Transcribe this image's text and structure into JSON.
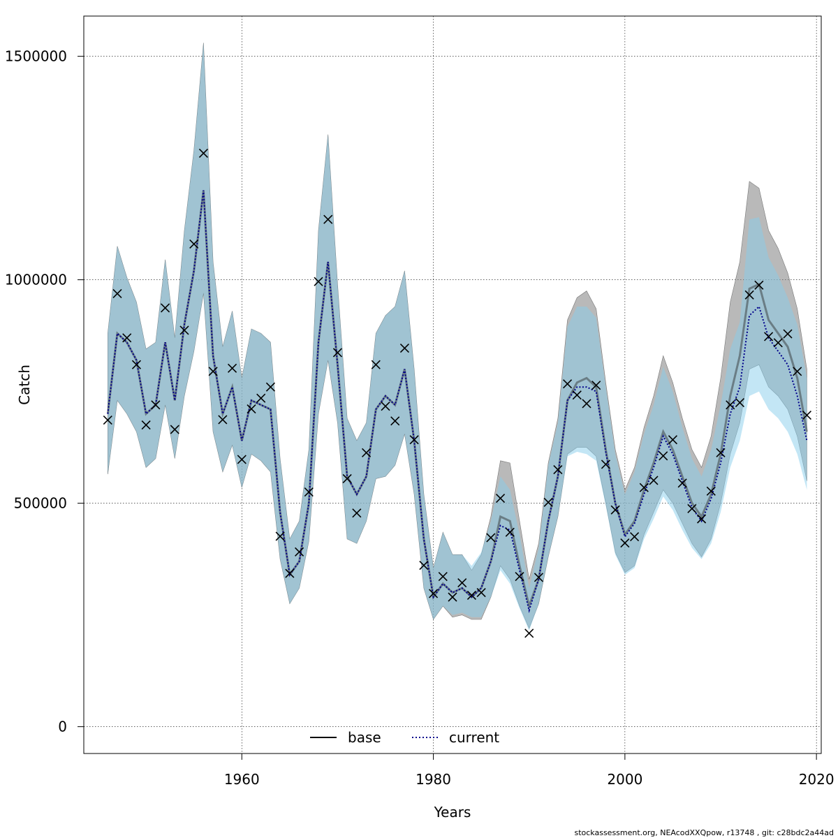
{
  "chart_data": {
    "type": "line",
    "xlabel": "Years",
    "ylabel": "Catch",
    "xlim": [
      1943.5,
      2020.5
    ],
    "ylim": [
      -60000,
      1590000
    ],
    "x_ticks": [
      1960,
      1980,
      2000,
      2020
    ],
    "y_ticks": [
      0,
      500000,
      1000000,
      1500000
    ],
    "x_tick_labels": [
      "1960",
      "1980",
      "2000",
      "2020"
    ],
    "y_tick_labels": [
      "0",
      "500000",
      "1000000",
      "1500000"
    ],
    "grid": true,
    "legend": {
      "position": "bottom-center",
      "entries": [
        {
          "label": "base",
          "style": "solid"
        },
        {
          "label": "current",
          "style": "dotted"
        }
      ]
    },
    "footer": "stockassessment.org, NEAcodXXQpow, r13748 , git: c28bdc2a44ad",
    "colors": {
      "base_band": "#808080",
      "current_band": "#87CEEB",
      "overlap_band": "#A5C4D4",
      "base_line": "#000000",
      "current_line": "#00008B"
    },
    "years": [
      1946,
      1947,
      1948,
      1949,
      1950,
      1951,
      1952,
      1953,
      1954,
      1955,
      1956,
      1957,
      1958,
      1959,
      1960,
      1961,
      1962,
      1963,
      1964,
      1965,
      1966,
      1967,
      1968,
      1969,
      1970,
      1971,
      1972,
      1973,
      1974,
      1975,
      1976,
      1977,
      1978,
      1979,
      1980,
      1981,
      1982,
      1983,
      1984,
      1985,
      1986,
      1987,
      1988,
      1989,
      1990,
      1991,
      1992,
      1993,
      1994,
      1995,
      1996,
      1997,
      1998,
      1999,
      2000,
      2001,
      2002,
      2003,
      2004,
      2005,
      2006,
      2007,
      2008,
      2009,
      2010,
      2011,
      2012,
      2013,
      2014,
      2015,
      2016,
      2017,
      2018,
      2019
    ],
    "observed": [
      686000,
      969000,
      870000,
      810000,
      675000,
      720000,
      937000,
      665000,
      887000,
      1080000,
      1283000,
      795000,
      687000,
      802000,
      598000,
      711000,
      735000,
      760000,
      426000,
      343000,
      391000,
      525000,
      996000,
      1135000,
      837000,
      555000,
      478000,
      613000,
      810000,
      717000,
      684000,
      847000,
      642000,
      361000,
      298000,
      336000,
      290000,
      322000,
      294000,
      300000,
      423000,
      511000,
      435000,
      336000,
      209000,
      334000,
      502000,
      575000,
      767000,
      742000,
      723000,
      764000,
      587000,
      485000,
      411000,
      425000,
      535000,
      551000,
      606000,
      642000,
      545000,
      488000,
      465000,
      527000,
      613000,
      720000,
      725000,
      966000,
      988000,
      873000,
      859000,
      879000,
      795000,
      697000
    ],
    "series": [
      {
        "name": "base",
        "values": [
          700000,
          880000,
          860000,
          820000,
          700000,
          720000,
          860000,
          730000,
          900000,
          1020000,
          1200000,
          830000,
          700000,
          760000,
          640000,
          730000,
          720000,
          710000,
          480000,
          340000,
          370000,
          500000,
          860000,
          1040000,
          810000,
          560000,
          520000,
          560000,
          710000,
          740000,
          720000,
          800000,
          640000,
          420000,
          290000,
          320000,
          300000,
          310000,
          290000,
          310000,
          370000,
          470000,
          460000,
          360000,
          270000,
          330000,
          460000,
          560000,
          730000,
          770000,
          780000,
          760000,
          620000,
          500000,
          430000,
          460000,
          530000,
          590000,
          660000,
          620000,
          560000,
          500000,
          470000,
          520000,
          610000,
          740000,
          830000,
          980000,
          990000,
          910000,
          880000,
          850000,
          780000,
          660000
        ],
        "lower": [
          565000,
          730000,
          700000,
          660000,
          580000,
          600000,
          720000,
          600000,
          740000,
          840000,
          970000,
          660000,
          570000,
          630000,
          535000,
          610000,
          595000,
          570000,
          375000,
          275000,
          310000,
          415000,
          700000,
          820000,
          680000,
          420000,
          410000,
          460000,
          555000,
          560000,
          585000,
          655000,
          520000,
          310000,
          240000,
          270000,
          245000,
          250000,
          240000,
          240000,
          290000,
          360000,
          330000,
          270000,
          220000,
          275000,
          380000,
          470000,
          610000,
          625000,
          625000,
          605000,
          500000,
          390000,
          345000,
          360000,
          430000,
          480000,
          530000,
          500000,
          455000,
          410000,
          380000,
          420000,
          500000,
          610000,
          680000,
          800000,
          810000,
          760000,
          740000,
          710000,
          650000,
          550000
        ],
        "upper": [
          880000,
          1075000,
          1005000,
          950000,
          845000,
          860000,
          1045000,
          870000,
          1110000,
          1290000,
          1530000,
          1040000,
          850000,
          930000,
          780000,
          890000,
          880000,
          860000,
          600000,
          420000,
          460000,
          620000,
          1110000,
          1325000,
          990000,
          690000,
          640000,
          680000,
          880000,
          920000,
          940000,
          1020000,
          800000,
          520000,
          355000,
          435000,
          385000,
          385000,
          350000,
          385000,
          470000,
          595000,
          590000,
          460000,
          330000,
          410000,
          590000,
          690000,
          910000,
          960000,
          975000,
          935000,
          770000,
          620000,
          530000,
          580000,
          670000,
          740000,
          830000,
          770000,
          690000,
          620000,
          580000,
          650000,
          780000,
          950000,
          1040000,
          1220000,
          1205000,
          1110000,
          1070000,
          1015000,
          935000,
          800000
        ]
      },
      {
        "name": "current",
        "values": [
          700000,
          880000,
          860000,
          820000,
          700000,
          720000,
          860000,
          730000,
          900000,
          1020000,
          1200000,
          830000,
          700000,
          760000,
          640000,
          730000,
          720000,
          710000,
          480000,
          340000,
          370000,
          500000,
          860000,
          1040000,
          810000,
          560000,
          520000,
          560000,
          710000,
          740000,
          720000,
          800000,
          640000,
          420000,
          290000,
          320000,
          300000,
          310000,
          290000,
          310000,
          370000,
          450000,
          440000,
          350000,
          260000,
          330000,
          460000,
          560000,
          730000,
          760000,
          760000,
          750000,
          615000,
          500000,
          425000,
          455000,
          520000,
          580000,
          650000,
          610000,
          550000,
          490000,
          460000,
          510000,
          590000,
          700000,
          760000,
          920000,
          940000,
          870000,
          840000,
          810000,
          740000,
          640000
        ],
        "lower": [
          565000,
          730000,
          700000,
          660000,
          580000,
          600000,
          720000,
          600000,
          740000,
          840000,
          970000,
          660000,
          570000,
          630000,
          535000,
          610000,
          595000,
          570000,
          375000,
          275000,
          310000,
          415000,
          700000,
          820000,
          680000,
          420000,
          410000,
          460000,
          555000,
          560000,
          585000,
          655000,
          520000,
          310000,
          240000,
          270000,
          250000,
          255000,
          245000,
          245000,
          290000,
          350000,
          320000,
          265000,
          215000,
          275000,
          380000,
          470000,
          605000,
          615000,
          610000,
          595000,
          495000,
          385000,
          340000,
          355000,
          420000,
          465000,
          515000,
          485000,
          440000,
          400000,
          375000,
          410000,
          480000,
          580000,
          640000,
          740000,
          750000,
          710000,
          690000,
          660000,
          610000,
          530000
        ],
        "upper": [
          880000,
          1075000,
          1005000,
          950000,
          845000,
          860000,
          1045000,
          870000,
          1110000,
          1290000,
          1530000,
          1040000,
          850000,
          930000,
          780000,
          890000,
          880000,
          860000,
          600000,
          420000,
          460000,
          620000,
          1110000,
          1325000,
          990000,
          690000,
          640000,
          680000,
          880000,
          920000,
          940000,
          1020000,
          800000,
          520000,
          355000,
          435000,
          385000,
          385000,
          360000,
          390000,
          460000,
          560000,
          530000,
          430000,
          310000,
          400000,
          585000,
          680000,
          895000,
          940000,
          940000,
          915000,
          760000,
          610000,
          520000,
          570000,
          655000,
          720000,
          805000,
          750000,
          670000,
          600000,
          560000,
          620000,
          720000,
          845000,
          905000,
          1135000,
          1140000,
          1050000,
          1010000,
          960000,
          900000,
          780000
        ]
      }
    ]
  }
}
